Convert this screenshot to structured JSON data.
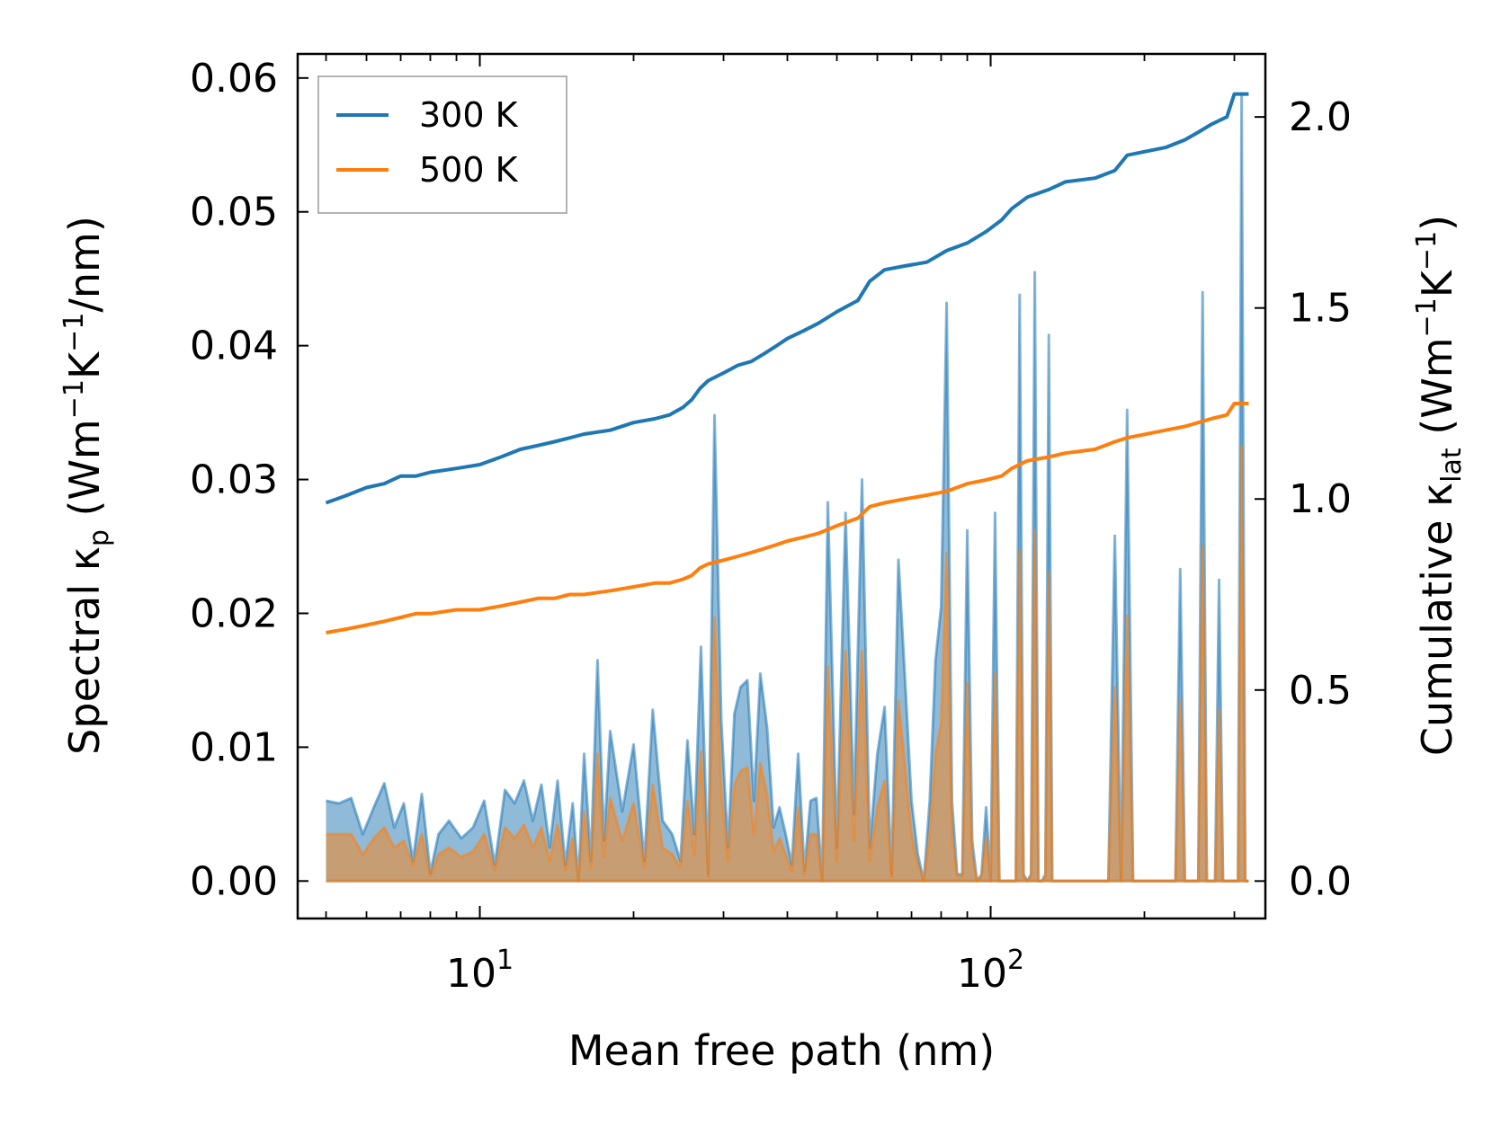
{
  "chart_data": {
    "type": "line",
    "title": "",
    "xlabel": "Mean free path (nm)",
    "x_scale": "log",
    "xlim": [
      4.4,
      345
    ],
    "x_tick_labels": [
      {
        "value": 10,
        "base": "10",
        "exp": "1"
      },
      {
        "value": 100,
        "base": "10",
        "exp": "2"
      }
    ],
    "ylabel_left": {
      "main": "Spectral κ",
      "sub": "p",
      "unit_open": " (Wm",
      "unit_exp1": "−1",
      "unit_mid": "K",
      "unit_exp2": "−1",
      "unit_close": "/nm)"
    },
    "ylim_left": [
      -0.0028,
      0.0618
    ],
    "yticks_left": [
      "0.00",
      "0.01",
      "0.02",
      "0.03",
      "0.04",
      "0.05",
      "0.06"
    ],
    "ylabel_right": {
      "main": "Cumulative κ",
      "sub": "lat",
      "unit_open": " (Wm",
      "unit_exp1": "−1",
      "unit_mid": "K",
      "unit_exp2": "−1",
      "unit_close": ")"
    },
    "ylim_right": [
      -0.098,
      2.165
    ],
    "yticks_right": [
      "0.0",
      "0.5",
      "1.0",
      "1.5",
      "2.0"
    ],
    "legend": {
      "position": "top-left",
      "entries": [
        {
          "label": "300 K",
          "color": "#1f77b4"
        },
        {
          "label": "500 K",
          "color": "#ff7f0e"
        }
      ]
    },
    "series": [
      {
        "name": "300 K",
        "color": "#1f77b4",
        "kind": "cumulative",
        "axis": "right",
        "x": [
          5,
          5.5,
          6,
          6.5,
          7,
          7.5,
          8,
          9,
          10,
          11,
          12,
          13,
          14,
          15,
          16,
          18,
          20,
          22,
          23.5,
          25,
          26,
          27,
          28,
          30,
          32,
          34,
          36,
          38,
          40,
          43,
          46,
          50,
          55,
          58,
          62,
          68,
          75,
          82,
          90,
          98,
          105,
          110,
          118,
          130,
          140,
          160,
          175,
          185,
          220,
          240,
          255,
          270,
          290,
          300,
          320
        ],
        "y": [
          0.99,
          1.01,
          1.03,
          1.04,
          1.06,
          1.06,
          1.07,
          1.08,
          1.09,
          1.11,
          1.13,
          1.14,
          1.15,
          1.16,
          1.17,
          1.18,
          1.2,
          1.21,
          1.22,
          1.24,
          1.26,
          1.29,
          1.31,
          1.33,
          1.35,
          1.36,
          1.38,
          1.4,
          1.42,
          1.44,
          1.46,
          1.49,
          1.52,
          1.57,
          1.6,
          1.61,
          1.62,
          1.65,
          1.67,
          1.7,
          1.73,
          1.76,
          1.79,
          1.81,
          1.83,
          1.84,
          1.86,
          1.9,
          1.92,
          1.94,
          1.96,
          1.98,
          2.0,
          2.06,
          2.06
        ]
      },
      {
        "name": "500 K",
        "color": "#ff7f0e",
        "kind": "cumulative",
        "axis": "right",
        "x": [
          5,
          5.5,
          6,
          6.5,
          7,
          7.5,
          8,
          9,
          10,
          11,
          12,
          13,
          14,
          15,
          16,
          18,
          20,
          22,
          23.5,
          25,
          26,
          27,
          28,
          30,
          32,
          34,
          36,
          38,
          40,
          43,
          46,
          50,
          55,
          58,
          62,
          68,
          75,
          82,
          90,
          98,
          105,
          110,
          118,
          130,
          140,
          160,
          175,
          185,
          220,
          240,
          255,
          270,
          290,
          300,
          320
        ],
        "y": [
          0.65,
          0.66,
          0.67,
          0.68,
          0.69,
          0.7,
          0.7,
          0.71,
          0.71,
          0.72,
          0.73,
          0.74,
          0.74,
          0.75,
          0.75,
          0.76,
          0.77,
          0.78,
          0.78,
          0.79,
          0.8,
          0.82,
          0.83,
          0.84,
          0.85,
          0.86,
          0.87,
          0.88,
          0.89,
          0.9,
          0.91,
          0.93,
          0.95,
          0.98,
          0.99,
          1.0,
          1.01,
          1.02,
          1.04,
          1.05,
          1.06,
          1.08,
          1.1,
          1.11,
          1.12,
          1.13,
          1.15,
          1.16,
          1.18,
          1.19,
          1.2,
          1.21,
          1.22,
          1.25,
          1.25
        ]
      },
      {
        "name": "300 K",
        "color": "#1f77b4",
        "kind": "spectral",
        "axis": "left",
        "x": [
          5,
          5.3,
          5.6,
          5.9,
          6.2,
          6.5,
          6.8,
          7.1,
          7.4,
          7.7,
          8,
          8.3,
          8.7,
          9.2,
          9.7,
          10.2,
          10.7,
          11.2,
          11.7,
          12.2,
          12.7,
          13.2,
          13.7,
          14.2,
          14.7,
          15.2,
          15.6,
          16,
          16.5,
          17,
          17.5,
          18,
          19,
          20,
          21,
          21.8,
          22.8,
          23.8,
          24.7,
          25.5,
          26.3,
          27.1,
          28,
          28.8,
          29.7,
          30.6,
          31.5,
          32.4,
          33.4,
          34.4,
          35.4,
          36.5,
          37.6,
          38.6,
          39.7,
          40.8,
          42,
          43.2,
          44.4,
          45.6,
          46.8,
          48,
          50,
          52,
          54,
          56,
          58,
          60,
          62,
          64,
          66,
          68,
          70,
          72,
          74,
          76,
          78,
          80,
          82,
          84,
          86,
          88,
          90,
          92,
          94,
          96,
          98,
          100,
          102,
          104,
          106,
          108,
          110,
          112,
          114,
          116,
          118,
          120,
          122,
          124,
          126,
          128,
          130,
          132,
          134,
          136,
          138,
          140,
          143,
          146,
          150,
          155,
          160,
          165,
          170,
          175,
          180,
          185,
          190,
          195,
          200,
          205,
          210,
          215,
          220,
          225,
          230,
          235,
          240,
          245,
          250,
          255,
          260,
          265,
          270,
          275,
          280,
          285,
          290,
          295,
          300,
          305,
          310,
          315,
          320
        ],
        "y": [
          0.006,
          0.0058,
          0.0062,
          0.0035,
          0.0055,
          0.0073,
          0.004,
          0.0058,
          0.0015,
          0.0065,
          0.0006,
          0.0035,
          0.0045,
          0.0032,
          0.004,
          0.006,
          0.0012,
          0.0068,
          0.0058,
          0.0075,
          0.0045,
          0.0072,
          0.0025,
          0.0075,
          0.0012,
          0.0058,
          0.0,
          0.0095,
          0.0015,
          0.0165,
          0.003,
          0.0112,
          0.0052,
          0.0102,
          0.0015,
          0.0128,
          0.0045,
          0.0035,
          0.0015,
          0.0105,
          0.0035,
          0.0175,
          0.0005,
          0.0348,
          0.012,
          0.0025,
          0.0125,
          0.0145,
          0.015,
          0.006,
          0.0155,
          0.0115,
          0.004,
          0.0055,
          0.0035,
          0.0012,
          0.0095,
          0.0008,
          0.006,
          0.0062,
          0.0,
          0.0283,
          0.0025,
          0.0275,
          0.005,
          0.03,
          0.0025,
          0.0095,
          0.013,
          0.0005,
          0.024,
          0.015,
          0.006,
          0.002,
          0.0,
          0.006,
          0.0165,
          0.0205,
          0.0432,
          0.006,
          0.0005,
          0.0005,
          0.0262,
          0.003,
          0.0,
          0.0005,
          0.0055,
          0.0,
          0.0275,
          0.0,
          0.0,
          0.0,
          0.0,
          0.0,
          0.0438,
          0.0005,
          0.0,
          0.0005,
          0.0455,
          0.0,
          0.0,
          0.0005,
          0.0408,
          0.0,
          0.0,
          0.0,
          0.0,
          0.0,
          0.0,
          0.0,
          0.0,
          0.0,
          0.0,
          0.0,
          0.0,
          0.0258,
          0.0,
          0.0352,
          0.0,
          0.0,
          0.0,
          0.0,
          0.0,
          0.0,
          0.0,
          0.0,
          0.0,
          0.0233,
          0.0,
          0.0,
          0.0,
          0.0,
          0.044,
          0.0,
          0.0,
          0.0,
          0.0225,
          0.0,
          0.0,
          0.0,
          0.0,
          0.0,
          0.0587,
          0.0,
          0.0
        ]
      },
      {
        "name": "500 K",
        "color": "#ff7f0e",
        "kind": "spectral",
        "axis": "left",
        "x": [
          5,
          5.3,
          5.6,
          5.9,
          6.2,
          6.5,
          6.8,
          7.1,
          7.4,
          7.7,
          8,
          8.3,
          8.7,
          9.2,
          9.7,
          10.2,
          10.7,
          11.2,
          11.7,
          12.2,
          12.7,
          13.2,
          13.7,
          14.2,
          14.7,
          15.2,
          15.6,
          16,
          16.5,
          17,
          17.5,
          18,
          19,
          20,
          21,
          21.8,
          22.8,
          23.8,
          24.7,
          25.5,
          26.3,
          27.1,
          28,
          28.8,
          29.7,
          30.6,
          31.5,
          32.4,
          33.4,
          34.4,
          35.4,
          36.5,
          37.6,
          38.6,
          39.7,
          40.8,
          42,
          43.2,
          44.4,
          45.6,
          46.8,
          48,
          50,
          52,
          54,
          56,
          58,
          60,
          62,
          64,
          66,
          68,
          70,
          72,
          74,
          76,
          78,
          80,
          82,
          84,
          86,
          88,
          90,
          92,
          94,
          96,
          98,
          100,
          102,
          104,
          106,
          108,
          110,
          112,
          114,
          116,
          118,
          120,
          122,
          124,
          126,
          128,
          130,
          132,
          134,
          136,
          138,
          140,
          143,
          146,
          150,
          155,
          160,
          165,
          170,
          175,
          180,
          185,
          190,
          195,
          200,
          205,
          210,
          215,
          220,
          225,
          230,
          235,
          240,
          245,
          250,
          255,
          260,
          265,
          270,
          275,
          280,
          285,
          290,
          295,
          300,
          305,
          310,
          315,
          320
        ],
        "y": [
          0.0035,
          0.0035,
          0.0035,
          0.002,
          0.0032,
          0.004,
          0.0025,
          0.003,
          0.0012,
          0.0035,
          0.0004,
          0.002,
          0.0025,
          0.0018,
          0.0022,
          0.0035,
          0.0008,
          0.004,
          0.0032,
          0.0042,
          0.0025,
          0.004,
          0.0015,
          0.0042,
          0.0008,
          0.0032,
          0.0,
          0.0052,
          0.001,
          0.0095,
          0.0018,
          0.0062,
          0.003,
          0.0058,
          0.001,
          0.0072,
          0.0025,
          0.002,
          0.001,
          0.006,
          0.002,
          0.0097,
          0.0003,
          0.0197,
          0.0068,
          0.0015,
          0.0072,
          0.0082,
          0.0085,
          0.0035,
          0.0088,
          0.0065,
          0.0022,
          0.0032,
          0.002,
          0.0007,
          0.0055,
          0.0005,
          0.0035,
          0.0035,
          0.0,
          0.016,
          0.0015,
          0.0172,
          0.003,
          0.0172,
          0.0015,
          0.0055,
          0.0075,
          0.0003,
          0.0135,
          0.0085,
          0.0035,
          0.0012,
          0.0,
          0.0035,
          0.0095,
          0.0118,
          0.0245,
          0.0035,
          0.0003,
          0.0003,
          0.0148,
          0.0018,
          0.0,
          0.0003,
          0.0032,
          0.0,
          0.0155,
          0.0,
          0.0,
          0.0,
          0.0,
          0.0,
          0.0247,
          0.0003,
          0.0,
          0.0003,
          0.0262,
          0.0,
          0.0,
          0.0003,
          0.023,
          0.0,
          0.0,
          0.0,
          0.0,
          0.0,
          0.0,
          0.0,
          0.0,
          0.0,
          0.0,
          0.0,
          0.0,
          0.0145,
          0.0,
          0.0198,
          0.0,
          0.0,
          0.0,
          0.0,
          0.0,
          0.0,
          0.0,
          0.0,
          0.0,
          0.0135,
          0.0,
          0.0,
          0.0,
          0.0,
          0.025,
          0.0,
          0.0,
          0.0,
          0.0128,
          0.0,
          0.0,
          0.0,
          0.0,
          0.0,
          0.0325,
          0.0,
          0.0
        ]
      }
    ]
  }
}
